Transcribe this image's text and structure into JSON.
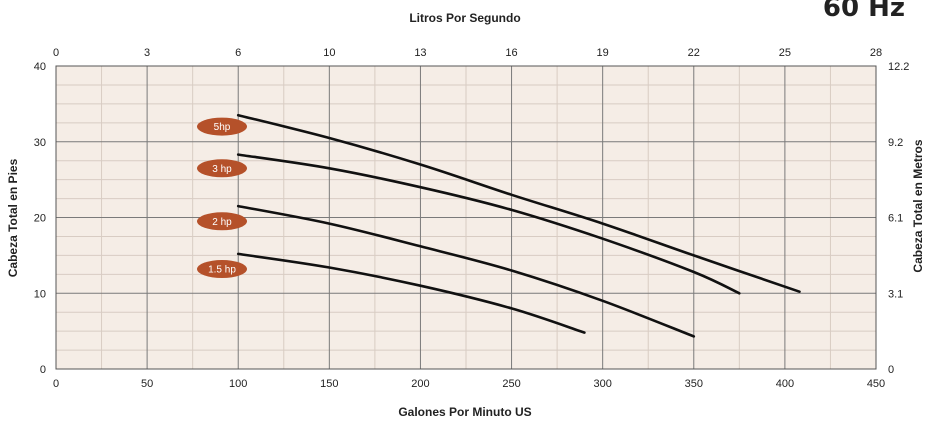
{
  "chart_data": {
    "type": "line",
    "corner_label": "60 Hz",
    "xlabel": "Galones Por Minuto US",
    "ylabel": "Cabeza Total en Pies",
    "x2label": "Litros Por Segundo",
    "y2label": "Cabeza Total en Metros",
    "xlim": [
      0,
      450
    ],
    "ylim": [
      0,
      40
    ],
    "x_ticks": [
      "0",
      "50",
      "100",
      "150",
      "200",
      "250",
      "300",
      "350",
      "400",
      "450"
    ],
    "y_ticks": [
      "0",
      "10",
      "20",
      "30",
      "40"
    ],
    "x2_ticks": [
      "0",
      "3",
      "6",
      "10",
      "13",
      "16",
      "19",
      "22",
      "25",
      "28"
    ],
    "y2_ticks": [
      "0",
      "3.1",
      "6.1",
      "9.2",
      "12.2"
    ],
    "grid": true,
    "series": [
      {
        "name": "5hp",
        "badge_y": 32.0,
        "points": [
          [
            100,
            33.5
          ],
          [
            150,
            30.5
          ],
          [
            200,
            27.0
          ],
          [
            250,
            23.0
          ],
          [
            300,
            19.2
          ],
          [
            350,
            15.0
          ],
          [
            408,
            10.2
          ]
        ]
      },
      {
        "name": "3 hp",
        "badge_y": 26.5,
        "points": [
          [
            100,
            28.3
          ],
          [
            150,
            26.5
          ],
          [
            200,
            24.0
          ],
          [
            250,
            21.0
          ],
          [
            300,
            17.2
          ],
          [
            350,
            12.8
          ],
          [
            375,
            10.0
          ]
        ]
      },
      {
        "name": "2 hp",
        "badge_y": 19.5,
        "points": [
          [
            100,
            21.5
          ],
          [
            150,
            19.2
          ],
          [
            200,
            16.2
          ],
          [
            250,
            13.0
          ],
          [
            300,
            9.0
          ],
          [
            350,
            4.3
          ]
        ]
      },
      {
        "name": "1.5 hp",
        "badge_y": 13.2,
        "points": [
          [
            100,
            15.2
          ],
          [
            150,
            13.4
          ],
          [
            200,
            11.0
          ],
          [
            250,
            8.0
          ],
          [
            290,
            4.8
          ]
        ]
      }
    ],
    "colors": {
      "plot_bg": "#f5ede6",
      "minor_grid": "#d8ccc3",
      "major_grid": "#7a7a7a",
      "curve": "#111111",
      "badge": "#b5512a"
    }
  }
}
